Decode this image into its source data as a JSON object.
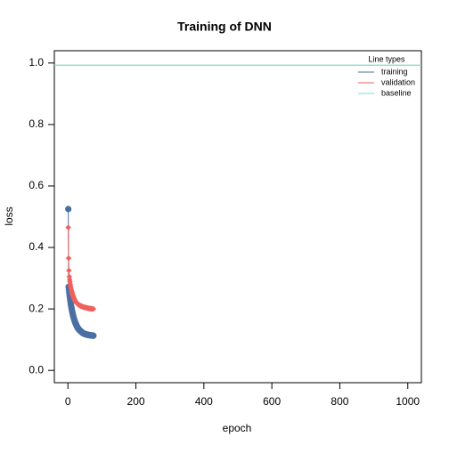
{
  "chart_data": {
    "type": "line",
    "title": "Training of DNN",
    "x_label": "epoch",
    "y_label": "loss",
    "x": [
      1,
      2,
      3,
      4,
      5,
      6,
      7,
      8,
      9,
      10,
      11,
      12,
      13,
      14,
      15,
      16,
      17,
      18,
      19,
      20,
      21,
      22,
      23,
      24,
      25,
      26,
      27,
      28,
      29,
      30,
      31,
      32,
      33,
      34,
      35,
      36,
      37,
      38,
      39,
      40,
      41,
      42,
      43,
      44,
      45,
      46,
      47,
      48,
      49,
      50,
      51,
      52,
      53,
      54,
      55,
      56,
      57,
      58,
      59,
      60,
      61,
      62,
      63,
      64,
      65,
      66,
      67,
      68,
      69,
      70,
      71,
      72,
      73,
      74,
      75
    ],
    "series": [
      {
        "name": "training",
        "color": "#4a6fa5",
        "marker": "circle",
        "values": [
          0.525,
          0.272,
          0.262,
          0.252,
          0.243,
          0.235,
          0.227,
          0.219,
          0.212,
          0.206,
          0.2,
          0.194,
          0.189,
          0.184,
          0.179,
          0.175,
          0.171,
          0.167,
          0.164,
          0.16,
          0.157,
          0.154,
          0.152,
          0.149,
          0.147,
          0.144,
          0.142,
          0.14,
          0.138,
          0.137,
          0.135,
          0.134,
          0.132,
          0.131,
          0.13,
          0.129,
          0.128,
          0.127,
          0.126,
          0.125,
          0.124,
          0.123,
          0.122,
          0.122,
          0.121,
          0.12,
          0.12,
          0.119,
          0.119,
          0.118,
          0.118,
          0.118,
          0.117,
          0.117,
          0.117,
          0.116,
          0.116,
          0.116,
          0.116,
          0.115,
          0.115,
          0.115,
          0.115,
          0.115,
          0.114,
          0.114,
          0.114,
          0.114,
          0.114,
          0.114,
          0.114,
          0.113,
          0.113,
          0.113,
          0.113
        ]
      },
      {
        "name": "validation",
        "color": "#f0605d",
        "marker": "diamond",
        "values": [
          0.465,
          0.365,
          0.325,
          0.305,
          0.295,
          0.288,
          0.28,
          0.273,
          0.267,
          0.262,
          0.257,
          0.253,
          0.249,
          0.245,
          0.242,
          0.239,
          0.236,
          0.233,
          0.231,
          0.229,
          0.227,
          0.225,
          0.223,
          0.222,
          0.22,
          0.219,
          0.218,
          0.217,
          0.216,
          0.215,
          0.214,
          0.213,
          0.213,
          0.212,
          0.211,
          0.211,
          0.21,
          0.21,
          0.209,
          0.209,
          0.208,
          0.208,
          0.207,
          0.207,
          0.206,
          0.206,
          0.206,
          0.205,
          0.205,
          0.205,
          0.204,
          0.204,
          0.204,
          0.204,
          0.203,
          0.203,
          0.203,
          0.203,
          0.202,
          0.202,
          0.202,
          0.202,
          0.202,
          0.201,
          0.201,
          0.201,
          0.201,
          0.201,
          0.201,
          0.2,
          0.2,
          0.2,
          0.2,
          0.2,
          0.2
        ]
      }
    ],
    "baseline": {
      "name": "baseline",
      "color": "#7fdcc0",
      "value": 0.993
    },
    "legend_title": "Line types",
    "legend_position": "top-right",
    "xlim": [
      -40,
      1040
    ],
    "xticks": [
      0,
      200,
      400,
      600,
      800,
      1000
    ],
    "ylim": [
      -0.04,
      1.04
    ],
    "yticks": [
      {
        "value": 0,
        "label": "0.0"
      },
      {
        "value": 0.2,
        "label": "0.2"
      },
      {
        "value": 0.4,
        "label": "0.4"
      },
      {
        "value": 0.6,
        "label": "0.6"
      },
      {
        "value": 0.8,
        "label": "0.8"
      },
      {
        "value": 1,
        "label": "1.0"
      }
    ]
  }
}
